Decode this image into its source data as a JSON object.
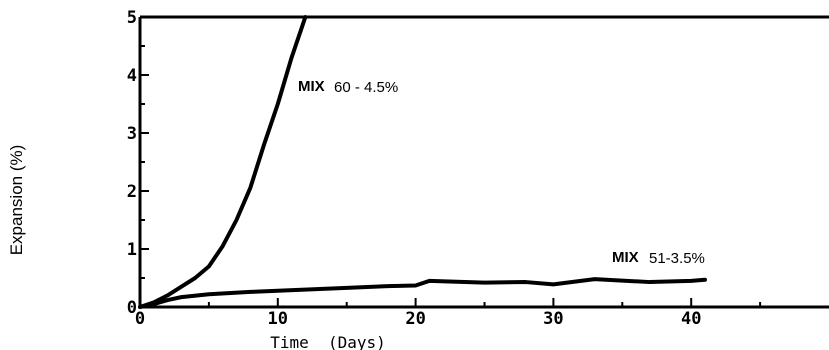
{
  "chart_data": {
    "type": "line",
    "xlabel": "Time  (Days)",
    "ylabel": "Expansion (%)",
    "xlim": [
      0,
      50
    ],
    "ylim": [
      0,
      5
    ],
    "xticks": [
      "0",
      "10",
      "20",
      "30",
      "40"
    ],
    "yticks": [
      "0",
      "1",
      "2",
      "3",
      "4",
      "5"
    ],
    "grid": false,
    "series": [
      {
        "name": "MIX 60 - 4.5%",
        "x": [
          0,
          1,
          2,
          3,
          4,
          5,
          6,
          7,
          8,
          9,
          10,
          11,
          12
        ],
        "y": [
          0,
          0.08,
          0.2,
          0.35,
          0.5,
          0.7,
          1.05,
          1.5,
          2.05,
          2.8,
          3.5,
          4.3,
          5.0
        ]
      },
      {
        "name": "MIX 51-3.5%",
        "x": [
          0,
          1,
          2,
          3,
          5,
          8,
          10,
          15,
          18,
          20,
          21,
          25,
          28,
          30,
          33,
          37,
          40,
          41
        ],
        "y": [
          0,
          0.05,
          0.12,
          0.17,
          0.22,
          0.26,
          0.28,
          0.33,
          0.36,
          0.37,
          0.45,
          0.42,
          0.43,
          0.39,
          0.48,
          0.43,
          0.45,
          0.47
        ]
      }
    ],
    "annotations": [
      {
        "prefix": "MIX",
        "text": "60 - 4.5%"
      },
      {
        "prefix": "MIX",
        "text": "51-3.5%"
      }
    ]
  }
}
